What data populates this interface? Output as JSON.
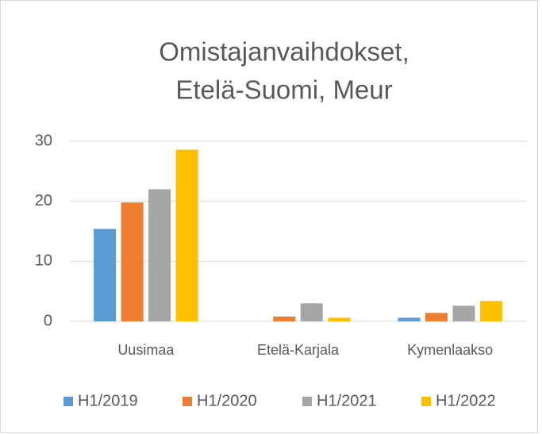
{
  "chart_data": {
    "type": "bar",
    "title": [
      "Omistajanvaihdokset,",
      "Etelä-Suomi, Meur"
    ],
    "categories": [
      "Uusimaa",
      "Etelä-Karjala",
      "Kymenlaakso"
    ],
    "series": [
      {
        "name": "H1/2019",
        "color": "#5b9bd5",
        "values": [
          15.4,
          0,
          0.6
        ]
      },
      {
        "name": "H1/2020",
        "color": "#ed7d31",
        "values": [
          19.8,
          0.8,
          1.4
        ]
      },
      {
        "name": "H1/2021",
        "color": "#a5a5a5",
        "values": [
          22,
          3.0,
          2.6
        ]
      },
      {
        "name": "H1/2022",
        "color": "#ffc000",
        "values": [
          28.6,
          0.6,
          3.4
        ]
      }
    ],
    "ylim": [
      0,
      30
    ],
    "yticks": [
      0,
      10,
      20,
      30
    ],
    "grid": true,
    "legend": "bottom"
  }
}
